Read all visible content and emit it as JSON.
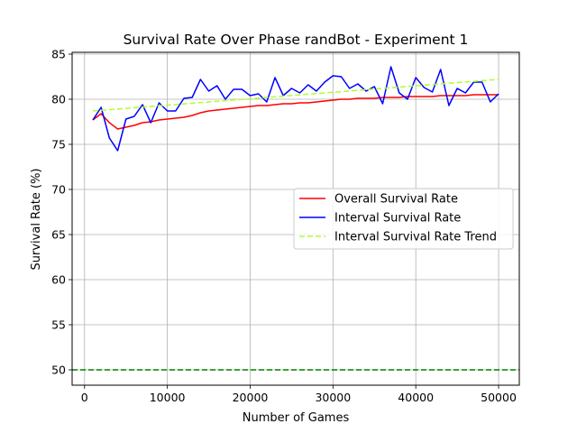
{
  "chart_data": {
    "type": "line",
    "title": "Survival Rate Over Phase randBot - Experiment 1",
    "xlabel": "Number of Games",
    "ylabel": "Survival Rate (%)",
    "xlim": [
      -1500,
      52500
    ],
    "ylim": [
      48.3,
      85.2
    ],
    "xticks": [
      0,
      10000,
      20000,
      30000,
      40000,
      50000
    ],
    "yticks": [
      50,
      55,
      60,
      65,
      70,
      75,
      80,
      85
    ],
    "grid": true,
    "legend_position": "center-right",
    "reference_line": {
      "y": 50,
      "color": "#008000",
      "style": "dashed"
    },
    "series": [
      {
        "name": "Overall Survival Rate",
        "color": "#ff0000",
        "style": "solid",
        "x": [
          1000,
          2000,
          3000,
          4000,
          5000,
          6000,
          7000,
          8000,
          9000,
          10000,
          11000,
          12000,
          13000,
          14000,
          15000,
          16000,
          17000,
          18000,
          19000,
          20000,
          21000,
          22000,
          23000,
          24000,
          25000,
          26000,
          27000,
          28000,
          29000,
          30000,
          31000,
          32000,
          33000,
          34000,
          35000,
          36000,
          37000,
          38000,
          39000,
          40000,
          41000,
          42000,
          43000,
          44000,
          45000,
          46000,
          47000,
          48000,
          49000,
          50000
        ],
        "y": [
          77.7,
          78.4,
          77.4,
          76.7,
          76.9,
          77.1,
          77.4,
          77.5,
          77.7,
          77.8,
          77.9,
          78.0,
          78.2,
          78.5,
          78.7,
          78.8,
          78.9,
          79.0,
          79.1,
          79.2,
          79.3,
          79.3,
          79.4,
          79.5,
          79.5,
          79.6,
          79.6,
          79.7,
          79.8,
          79.9,
          80.0,
          80.0,
          80.1,
          80.1,
          80.1,
          80.2,
          80.2,
          80.2,
          80.3,
          80.3,
          80.3,
          80.3,
          80.4,
          80.4,
          80.4,
          80.4,
          80.5,
          80.5,
          80.5,
          80.5
        ]
      },
      {
        "name": "Interval Survival Rate",
        "color": "#0000ff",
        "style": "solid",
        "x": [
          1000,
          2000,
          3000,
          4000,
          5000,
          6000,
          7000,
          8000,
          9000,
          10000,
          11000,
          12000,
          13000,
          14000,
          15000,
          16000,
          17000,
          18000,
          19000,
          20000,
          21000,
          22000,
          23000,
          24000,
          25000,
          26000,
          27000,
          28000,
          29000,
          30000,
          31000,
          32000,
          33000,
          34000,
          35000,
          36000,
          37000,
          38000,
          39000,
          40000,
          41000,
          42000,
          43000,
          44000,
          45000,
          46000,
          47000,
          48000,
          49000,
          50000
        ],
        "y": [
          77.7,
          79.1,
          75.7,
          74.3,
          77.8,
          78.1,
          79.4,
          77.4,
          79.6,
          78.7,
          78.7,
          80.1,
          80.2,
          82.2,
          80.9,
          81.5,
          80.0,
          81.1,
          81.1,
          80.4,
          80.6,
          79.7,
          82.4,
          80.4,
          81.2,
          80.7,
          81.6,
          80.9,
          81.9,
          82.6,
          82.5,
          81.2,
          81.7,
          80.9,
          81.4,
          79.5,
          83.6,
          80.7,
          80.0,
          82.4,
          81.3,
          80.8,
          83.3,
          79.3,
          81.2,
          80.7,
          81.9,
          81.9,
          79.7,
          80.6
        ]
      },
      {
        "name": "Interval Survival Rate Trend",
        "color": "#adff2f",
        "style": "dashed",
        "x": [
          1000,
          50000
        ],
        "y": [
          78.7,
          82.2
        ]
      }
    ]
  }
}
